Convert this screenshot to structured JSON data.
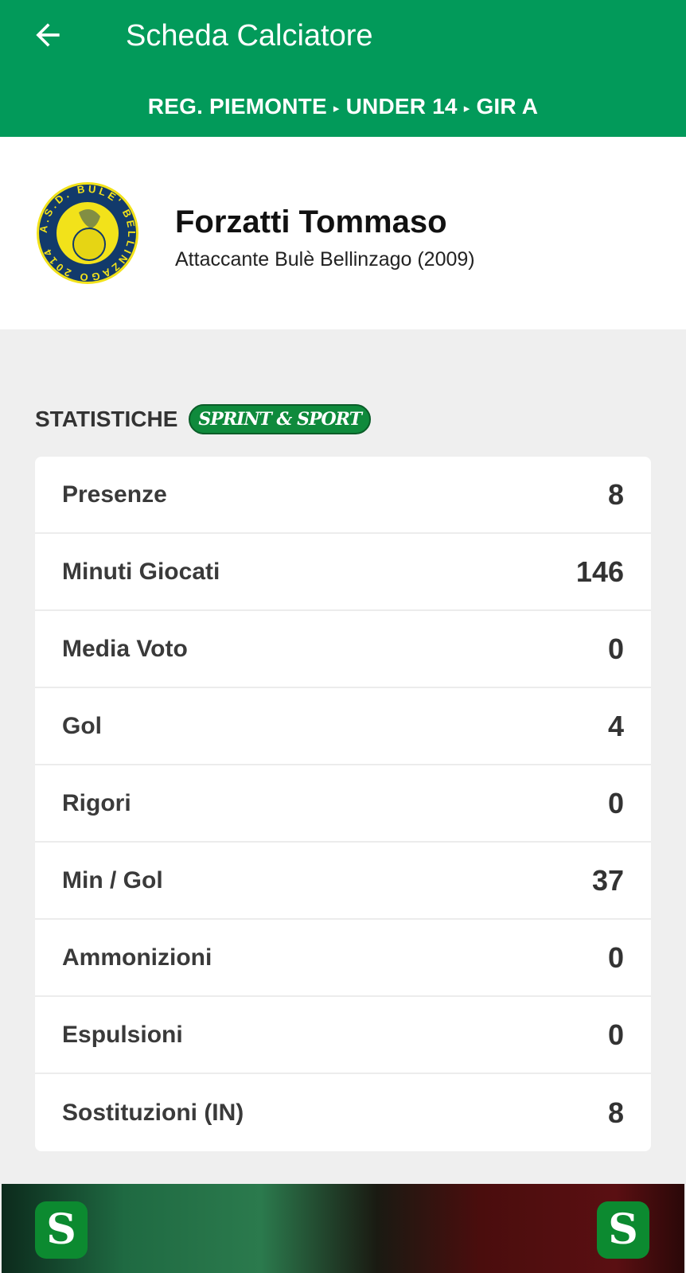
{
  "header": {
    "title": "Scheda Calciatore",
    "breadcrumb": [
      "REG. PIEMONTE",
      "UNDER 14",
      "GIR A"
    ],
    "separator": "▸",
    "color": "#029a5a"
  },
  "player": {
    "name": "Forzatti Tommaso",
    "subtitle": "Attaccante Bulè Bellinzago (2009)",
    "club_logo_text": "A.S.D. BULE' BELLINZAGO 2014"
  },
  "stats": {
    "label": "STATISTICHE",
    "sponsor": "SPRINT & SPORT",
    "rows": [
      {
        "label": "Presenze",
        "value": "8"
      },
      {
        "label": "Minuti Giocati",
        "value": "146"
      },
      {
        "label": "Media Voto",
        "value": "0"
      },
      {
        "label": "Gol",
        "value": "4"
      },
      {
        "label": "Rigori",
        "value": "0"
      },
      {
        "label": "Min / Gol",
        "value": "37"
      },
      {
        "label": "Ammonizioni",
        "value": "0"
      },
      {
        "label": "Espulsioni",
        "value": "0"
      },
      {
        "label": "Sostituzioni (IN)",
        "value": "8"
      }
    ]
  },
  "banner": {
    "logo_text": "S"
  }
}
